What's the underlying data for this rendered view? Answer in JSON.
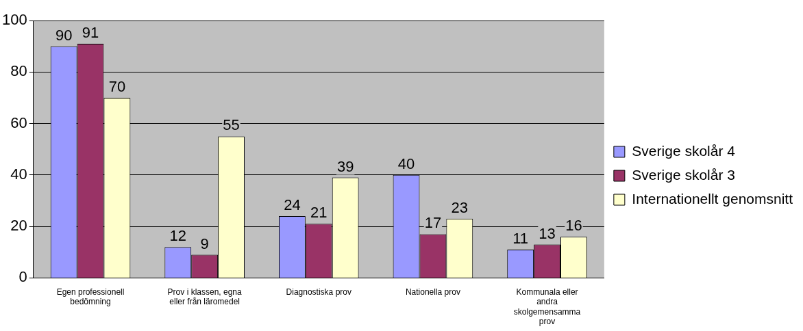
{
  "chart_data": {
    "type": "bar",
    "categories": [
      "Egen professionell bedömning",
      "Prov i klassen, egna eller från läromedel",
      "Diagnostiska prov",
      "Nationella prov",
      "Kommunala eller andra skolgemensamma prov"
    ],
    "series": [
      {
        "name": "Sverige skolår 4",
        "color": "#9999ff",
        "values": [
          90,
          12,
          24,
          40,
          11
        ]
      },
      {
        "name": "Sverige skolår 3",
        "color": "#993366",
        "values": [
          91,
          9,
          21,
          17,
          13
        ]
      },
      {
        "name": "Internationellt genomsnitt",
        "color": "#ffffcc",
        "values": [
          70,
          55,
          39,
          23,
          16
        ]
      }
    ],
    "ylim": [
      0,
      100
    ],
    "yticks": [
      0,
      20,
      40,
      60,
      80,
      100
    ],
    "grid": "y",
    "legend": "right",
    "data_labels": true
  }
}
